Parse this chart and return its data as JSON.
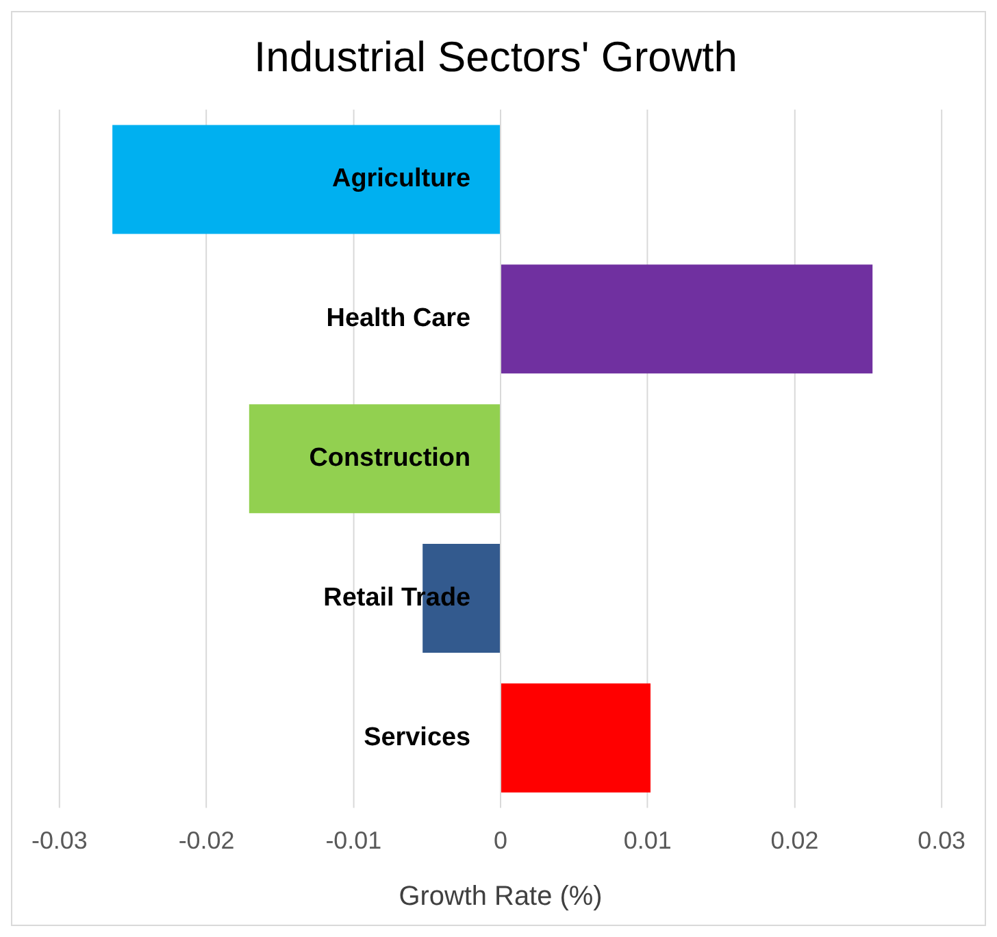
{
  "chart_data": {
    "type": "bar",
    "title": "Industrial Sectors' Growth",
    "xlabel": "Growth Rate (%)",
    "orientation": "horizontal",
    "categories": [
      "Agriculture",
      "Health Care",
      "Construction",
      "Retail Trade",
      "Services"
    ],
    "values": [
      -0.0264,
      0.0253,
      -0.0171,
      -0.0053,
      0.0102
    ],
    "colors": [
      "#00b0f0",
      "#7030a0",
      "#92d050",
      "#335a8e",
      "#ff0000"
    ],
    "xlim": [
      -0.03,
      0.03
    ],
    "xticks": [
      -0.03,
      -0.02,
      -0.01,
      0,
      0.01,
      0.02,
      0.03
    ],
    "grid": "x",
    "legend": false
  }
}
